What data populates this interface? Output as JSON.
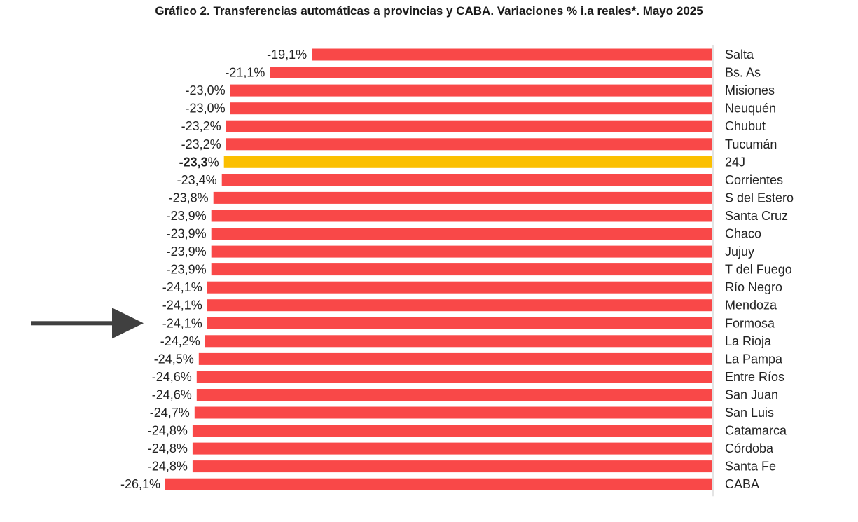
{
  "chart_data": {
    "type": "bar",
    "orientation": "horizontal",
    "title": "Gráfico 2. Transferencias automáticas a provincias y CABA. Variaciones % i.a reales*. Mayo 2025",
    "xlabel": "",
    "ylabel": "",
    "xlim": [
      -26.1,
      0
    ],
    "grid": false,
    "legend": "none",
    "value_suffix": "%",
    "categories": [
      "Salta",
      "Bs. As",
      "Misiones",
      "Neuquén",
      "Chubut",
      "Tucumán",
      "24J",
      "Corrientes",
      "S del Estero",
      "Santa Cruz",
      "Chaco",
      "Jujuy",
      "T del Fuego",
      "Río Negro",
      "Mendoza",
      "Formosa",
      "La Rioja",
      "La Pampa",
      "Entre Ríos",
      "San Juan",
      "San Luis",
      "Catamarca",
      "Córdoba",
      "Santa Fe",
      "CABA"
    ],
    "values": [
      -19.1,
      -21.1,
      -23.0,
      -23.0,
      -23.2,
      -23.2,
      -23.3,
      -23.4,
      -23.8,
      -23.9,
      -23.9,
      -23.9,
      -23.9,
      -24.1,
      -24.1,
      -24.1,
      -24.2,
      -24.5,
      -24.6,
      -24.6,
      -24.7,
      -24.8,
      -24.8,
      -24.8,
      -26.1
    ],
    "value_labels": [
      "-19,1",
      "-21,1",
      "-23,0",
      "-23,0",
      "-23,2",
      "-23,2",
      "-23,3",
      "-23,4",
      "-23,8",
      "-23,9",
      "-23,9",
      "-23,9",
      "-23,9",
      "-24,1",
      "-24,1",
      "-24,1",
      "-24,2",
      "-24,5",
      "-24,6",
      "-24,6",
      "-24,7",
      "-24,8",
      "-24,8",
      "-24,8",
      "-26,1"
    ],
    "highlight_category": "24J",
    "annotation": {
      "type": "arrow",
      "points_to": "Formosa"
    },
    "colors": {
      "bar": "#f94848",
      "highlight": "#fbbf00",
      "axis": "#c8c8c8",
      "arrow": "#404040"
    }
  }
}
